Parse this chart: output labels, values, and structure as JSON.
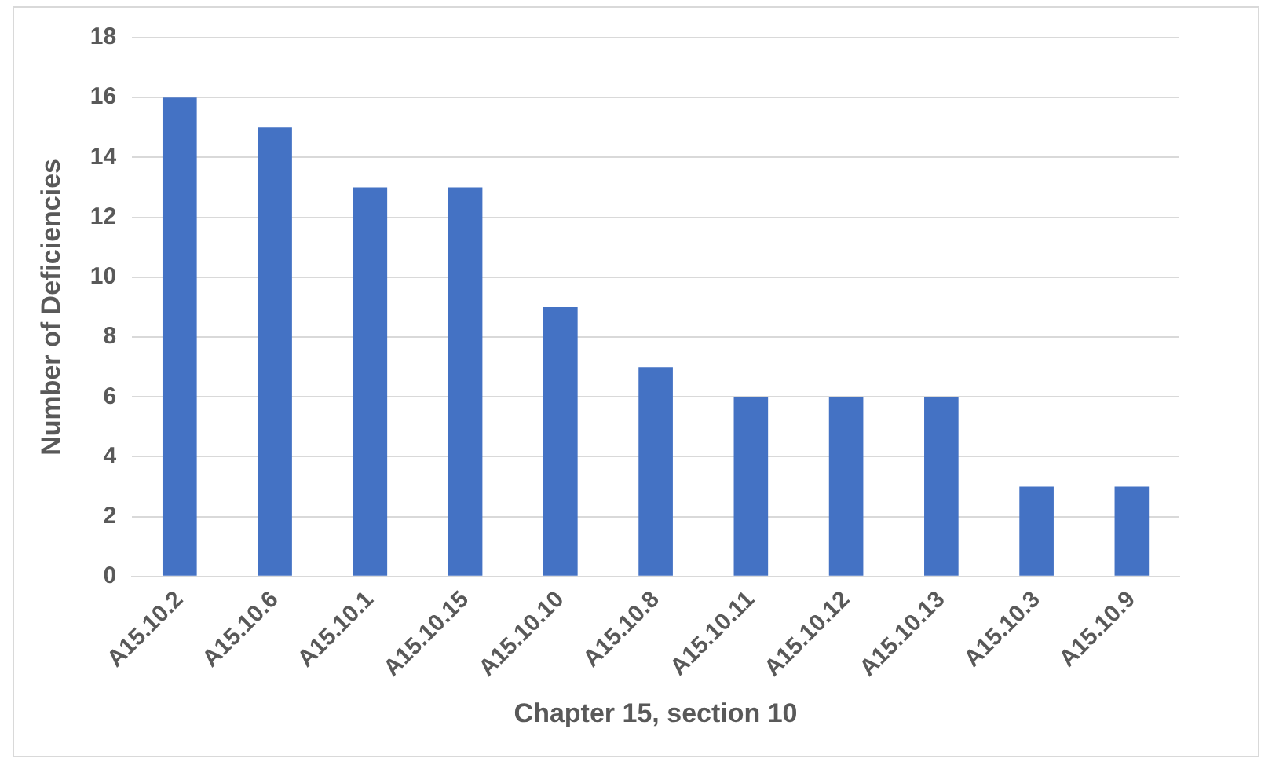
{
  "chart_data": {
    "type": "bar",
    "xlabel": "Chapter 15, section 10",
    "ylabel": "Number of Deficiencies",
    "categories": [
      "A15.10.2",
      "A15.10.6",
      "A15.10.1",
      "A15.10.15",
      "A15.10.10",
      "A15.10.8",
      "A15.10.11",
      "A15.10.12",
      "A15.10.13",
      "A15.10.3",
      "A15.10.9"
    ],
    "values": [
      16,
      15,
      13,
      13,
      9,
      7,
      6,
      6,
      6,
      3,
      3
    ],
    "color": "#4472c4",
    "ylim": [
      0,
      18
    ],
    "yticks": [
      0,
      2,
      4,
      6,
      8,
      10,
      12,
      14,
      16,
      18
    ],
    "grid": "y"
  }
}
